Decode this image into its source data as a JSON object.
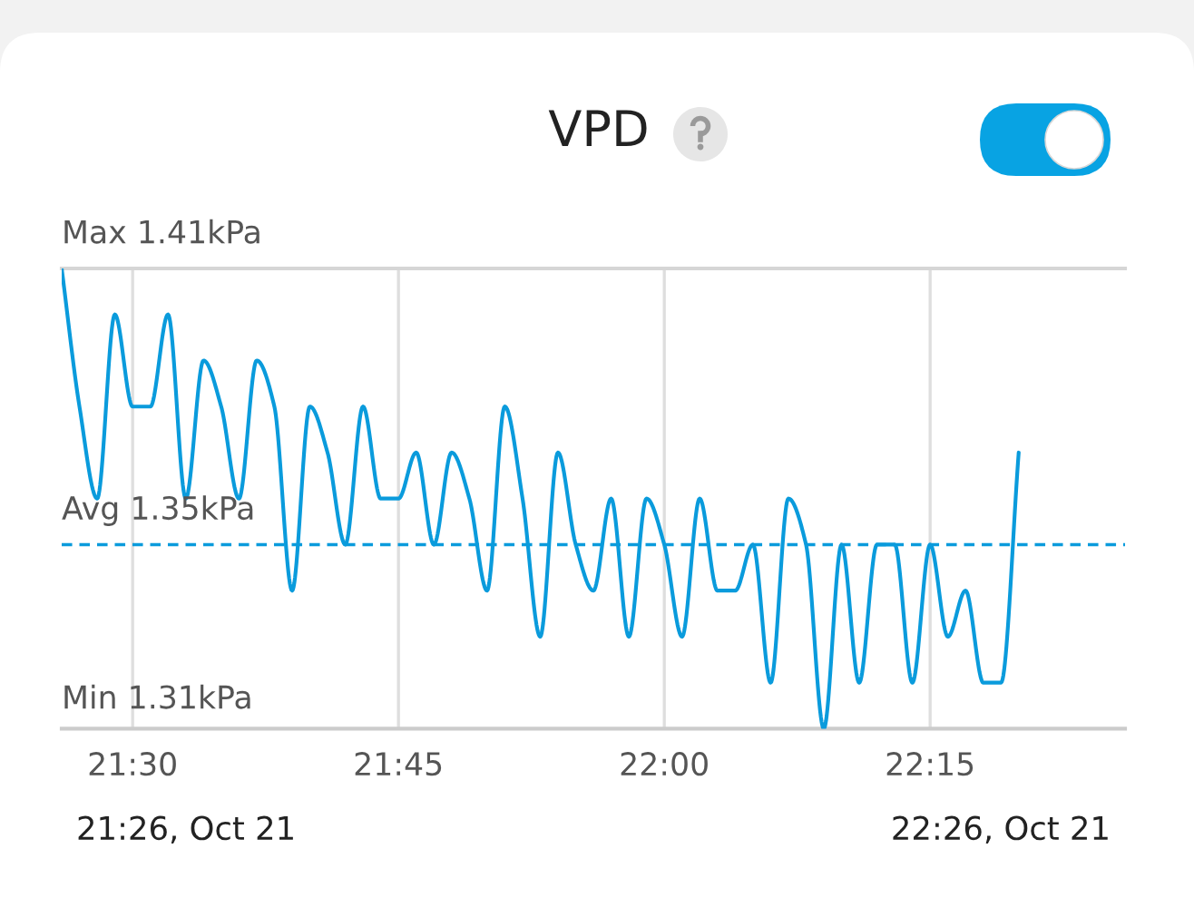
{
  "chart_data": {
    "type": "line",
    "title": "VPD",
    "x": [
      21.4333,
      21.45,
      21.4667,
      21.4833,
      21.5,
      21.5167,
      21.5333,
      21.55,
      21.5667,
      21.5833,
      21.6,
      21.6167,
      21.6333,
      21.65,
      21.6667,
      21.6833,
      21.7,
      21.7167,
      21.7333,
      21.75,
      21.7667,
      21.7833,
      21.8,
      21.8167,
      21.8333,
      21.85,
      21.8667,
      21.8833,
      21.9,
      21.9167,
      21.9333,
      21.95,
      21.9667,
      21.9833,
      22.0,
      22.0167,
      22.0333,
      22.05,
      22.0667,
      22.0833,
      22.1,
      22.1167,
      22.1333,
      22.15,
      22.1667,
      22.1833,
      22.2,
      22.2167,
      22.2333,
      22.25,
      22.2667,
      22.2833,
      22.3,
      22.3167,
      22.3333
    ],
    "series": [
      {
        "color": "#0a9bdc",
        "values": [
          1.41,
          1.38,
          1.36,
          1.4,
          1.38,
          1.38,
          1.4,
          1.36,
          1.39,
          1.38,
          1.36,
          1.39,
          1.38,
          1.34,
          1.38,
          1.37,
          1.35,
          1.38,
          1.36,
          1.36,
          1.37,
          1.35,
          1.37,
          1.36,
          1.34,
          1.38,
          1.36,
          1.33,
          1.37,
          1.35,
          1.34,
          1.36,
          1.33,
          1.36,
          1.35,
          1.33,
          1.36,
          1.34,
          1.34,
          1.35,
          1.32,
          1.36,
          1.35,
          1.31,
          1.35,
          1.32,
          1.35,
          1.35,
          1.32,
          1.35,
          1.33,
          1.34,
          1.32,
          1.32,
          1.37
        ]
      }
    ],
    "xlim": [
      21.4333,
      22.4333
    ],
    "xticks": [
      {
        "value": 21.5,
        "label": "21:30"
      },
      {
        "value": 21.75,
        "label": "21:45"
      },
      {
        "value": 22.0,
        "label": "22:00"
      },
      {
        "value": 22.25,
        "label": "22:15"
      }
    ],
    "ylim": [
      1.31,
      1.41
    ],
    "tick_labels": "x",
    "grid": "x",
    "ref_lines": [
      {
        "axis": "y",
        "value": 1.41,
        "label": "Max 1.41kPa",
        "color": "#d6d6d6",
        "line_style": "solid"
      },
      {
        "axis": "y",
        "value": 1.35,
        "label": "Avg 1.35kPa",
        "color": "#0a9bdc",
        "line_style": "dashed"
      }
    ],
    "annotations": [
      "Min 1.31kPa",
      "21:26, Oct 21",
      "22:26, Oct 21"
    ]
  }
}
